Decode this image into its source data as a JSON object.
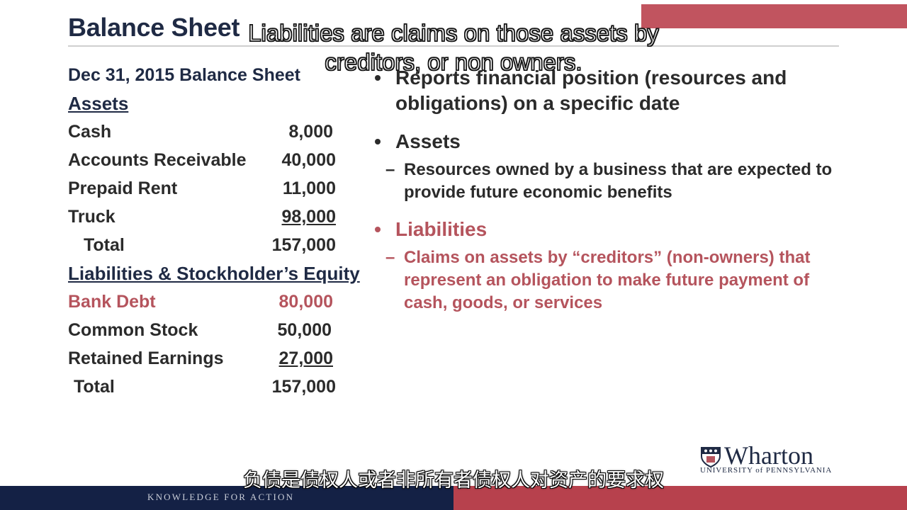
{
  "slide": {
    "title": "Balance Sheet",
    "balance_sheet": {
      "date_heading": "Dec 31, 2015 Balance Sheet",
      "assets_heading": "Assets",
      "assets": [
        {
          "label": "Cash",
          "value": "8,000"
        },
        {
          "label": "Accounts Receivable",
          "value": "40,000"
        },
        {
          "label": "Prepaid Rent",
          "value": "11,000"
        },
        {
          "label": "Truck",
          "value": "98,000"
        }
      ],
      "assets_total": {
        "label": "Total",
        "value": "157,000"
      },
      "liab_heading": "Liabilities & Stockholder’s Equity",
      "liabilities": [
        {
          "label": "Bank Debt",
          "value": "80,000"
        },
        {
          "label": "Common Stock",
          "value": "50,000"
        },
        {
          "label": "Retained Earnings",
          "value": "27,000"
        }
      ],
      "liab_total": {
        "label": "Total",
        "value": "157,000"
      }
    },
    "bullets": {
      "b1": "Reports financial position (resources and obligations) on a specific date",
      "b2": "Assets",
      "b2_sub": "Resources owned by a business that are expected to provide future economic benefits",
      "b3": "Liabilities",
      "b3_sub": "Claims on assets by “creditors” (non-owners) that represent an obligation to make future payment of cash, goods, or services",
      "bullet_glyph": "•",
      "dash_glyph": "–"
    },
    "logo": {
      "word": "Wharton",
      "sub": "UNIVERSITY of PENNSYLVANIA"
    },
    "footer": {
      "tagline": "KNOWLEDGE FOR ACTION"
    }
  },
  "captions": {
    "english": "Liabilities are claims on those assets by creditors, or non owners.",
    "chinese": "负债是债权人或者非所有者债权人对资产的要求权"
  },
  "colors": {
    "navy": "#1f2a44",
    "accent_red": "#b5545d",
    "footer_navy": "#142145",
    "footer_red": "#b7414d"
  }
}
